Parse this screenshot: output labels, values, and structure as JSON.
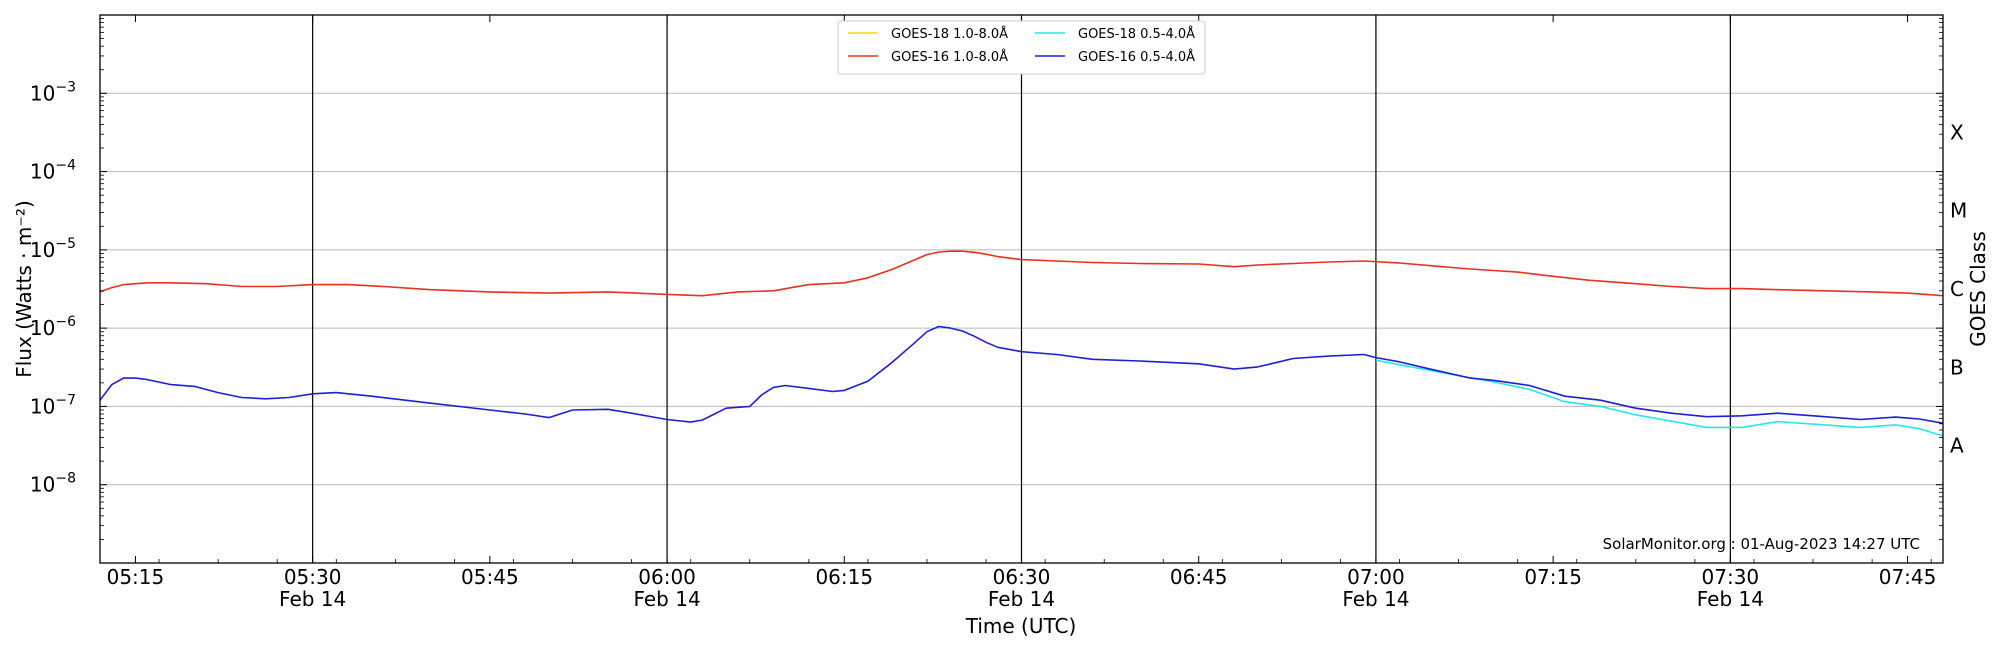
{
  "chart_data": {
    "type": "line",
    "title": "",
    "xlabel": "Time (UTC)",
    "ylabel": "Flux (Watts · m⁻²)",
    "y2label": "GOES Class",
    "y_scale": "log",
    "ylim": [
      1e-09,
      0.01
    ],
    "xlim": [
      "05:12",
      "07:48"
    ],
    "grid": "horizontal at decades",
    "legend_position": "top-center",
    "credit": "SolarMonitor.org : 01-Aug-2023 14:27 UTC",
    "x_ticks": [
      {
        "t": "05:15",
        "label": "05:15"
      },
      {
        "t": "05:30",
        "label": "05:30",
        "date": "Feb 14"
      },
      {
        "t": "05:45",
        "label": "05:45"
      },
      {
        "t": "06:00",
        "label": "06:00",
        "date": "Feb 14"
      },
      {
        "t": "06:15",
        "label": "06:15"
      },
      {
        "t": "06:30",
        "label": "06:30",
        "date": "Feb 14"
      },
      {
        "t": "06:45",
        "label": "06:45"
      },
      {
        "t": "07:00",
        "label": "07:00",
        "date": "Feb 14"
      },
      {
        "t": "07:15",
        "label": "07:15"
      },
      {
        "t": "07:30",
        "label": "07:30",
        "date": "Feb 14"
      },
      {
        "t": "07:45",
        "label": "07:45"
      }
    ],
    "y_ticks": [
      {
        "exp": -8,
        "base": "10",
        "sup": "−8"
      },
      {
        "exp": -7,
        "base": "10",
        "sup": "−7"
      },
      {
        "exp": -6,
        "base": "10",
        "sup": "−6"
      },
      {
        "exp": -5,
        "base": "10",
        "sup": "−5"
      },
      {
        "exp": -4,
        "base": "10",
        "sup": "−4"
      },
      {
        "exp": -3,
        "base": "10",
        "sup": "−3"
      }
    ],
    "goes_classes": [
      {
        "label": "A",
        "exp": -7.5
      },
      {
        "label": "B",
        "exp": -6.5
      },
      {
        "label": "C",
        "exp": -5.5
      },
      {
        "label": "M",
        "exp": -4.5
      },
      {
        "label": "X",
        "exp": -3.5
      }
    ],
    "vertical_lines": [
      "05:30",
      "06:00",
      "06:30",
      "07:00",
      "07:30"
    ],
    "series": [
      {
        "name": "GOES-18 1.0-8.0Å",
        "color": "#ffd700",
        "x": [],
        "y": []
      },
      {
        "name": "GOES-16 1.0-8.0Å",
        "color": "#e8321e",
        "x": [
          "05:12",
          "05:13",
          "05:14",
          "05:16",
          "05:18",
          "05:21",
          "05:24",
          "05:27",
          "05:30",
          "05:33",
          "05:36",
          "05:40",
          "05:45",
          "05:50",
          "05:55",
          "06:00",
          "06:03",
          "06:06",
          "06:09",
          "06:12",
          "06:15",
          "06:17",
          "06:19",
          "06:21",
          "06:22",
          "06:23",
          "06:24",
          "06:25",
          "06:26",
          "06:27",
          "06:28",
          "06:30",
          "06:33",
          "06:36",
          "06:40",
          "06:45",
          "06:48",
          "06:50",
          "06:53",
          "06:56",
          "06:59",
          "07:02",
          "07:05",
          "07:08",
          "07:12",
          "07:15",
          "07:18",
          "07:22",
          "07:25",
          "07:28",
          "07:31",
          "07:34",
          "07:38",
          "07:42",
          "07:45",
          "07:48"
        ],
        "y": [
          2.9e-06,
          3.3e-06,
          3.6e-06,
          3.8e-06,
          3.8e-06,
          3.7e-06,
          3.4e-06,
          3.4e-06,
          3.6e-06,
          3.6e-06,
          3.4e-06,
          3.1e-06,
          2.9e-06,
          2.8e-06,
          2.9e-06,
          2.7e-06,
          2.6e-06,
          2.9e-06,
          3e-06,
          3.6e-06,
          3.8e-06,
          4.4e-06,
          5.6e-06,
          7.5e-06,
          8.7e-06,
          9.4e-06,
          9.6e-06,
          9.6e-06,
          9.3e-06,
          8.8e-06,
          8.2e-06,
          7.5e-06,
          7.2e-06,
          6.9e-06,
          6.7e-06,
          6.6e-06,
          6.1e-06,
          6.4e-06,
          6.7e-06,
          7e-06,
          7.2e-06,
          6.8e-06,
          6.2e-06,
          5.7e-06,
          5.2e-06,
          4.6e-06,
          4.1e-06,
          3.7e-06,
          3.4e-06,
          3.2e-06,
          3.2e-06,
          3.1e-06,
          3e-06,
          2.9e-06,
          2.8e-06,
          2.6e-06
        ]
      },
      {
        "name": "GOES-18 0.5-4.0Å",
        "color": "#22e8e8",
        "x": [
          "07:00",
          "07:05",
          "07:10",
          "07:13",
          "07:16",
          "07:19",
          "07:22",
          "07:25",
          "07:28",
          "07:31",
          "07:34",
          "07:38",
          "07:41",
          "07:44",
          "07:46",
          "07:48"
        ],
        "y": [
          3.9e-07,
          2.8e-07,
          2.05e-07,
          1.65e-07,
          1.15e-07,
          1e-07,
          7.8e-08,
          6.5e-08,
          5.4e-08,
          5.4e-08,
          6.4e-08,
          5.8e-08,
          5.4e-08,
          5.8e-08,
          5.2e-08,
          4.2e-08
        ]
      },
      {
        "name": "GOES-16 0.5-4.0Å",
        "color": "#1f1fd6",
        "x": [
          "05:12",
          "05:13",
          "05:14",
          "05:15",
          "05:16",
          "05:18",
          "05:20",
          "05:22",
          "05:24",
          "05:26",
          "05:28",
          "05:30",
          "05:32",
          "05:35",
          "05:40",
          "05:45",
          "05:48",
          "05:50",
          "05:52",
          "05:55",
          "05:57",
          "06:00",
          "06:02",
          "06:03",
          "06:05",
          "06:07",
          "06:08",
          "06:09",
          "06:10",
          "06:12",
          "06:14",
          "06:15",
          "06:17",
          "06:19",
          "06:21",
          "06:22",
          "06:23",
          "06:24",
          "06:25",
          "06:26",
          "06:27",
          "06:28",
          "06:30",
          "06:33",
          "06:36",
          "06:40",
          "06:45",
          "06:48",
          "06:50",
          "06:53",
          "06:56",
          "06:59",
          "07:00",
          "07:02",
          "07:05",
          "07:08",
          "07:10",
          "07:13",
          "07:16",
          "07:19",
          "07:22",
          "07:25",
          "07:28",
          "07:31",
          "07:34",
          "07:38",
          "07:41",
          "07:44",
          "07:46",
          "07:48"
        ],
        "y": [
          1.2e-07,
          1.9e-07,
          2.3e-07,
          2.3e-07,
          2.2e-07,
          1.9e-07,
          1.8e-07,
          1.5e-07,
          1.3e-07,
          1.25e-07,
          1.3e-07,
          1.45e-07,
          1.5e-07,
          1.35e-07,
          1.1e-07,
          9e-08,
          8e-08,
          7.2e-08,
          9e-08,
          9.2e-08,
          8.2e-08,
          6.8e-08,
          6.3e-08,
          6.7e-08,
          9.5e-08,
          1e-07,
          1.4e-07,
          1.75e-07,
          1.85e-07,
          1.7e-07,
          1.55e-07,
          1.6e-07,
          2.1e-07,
          3.6e-07,
          6.6e-07,
          9e-07,
          1.05e-06,
          1e-06,
          9.2e-07,
          7.9e-07,
          6.6e-07,
          5.7e-07,
          5e-07,
          4.6e-07,
          4e-07,
          3.8e-07,
          3.5e-07,
          3e-07,
          3.2e-07,
          4.1e-07,
          4.4e-07,
          4.6e-07,
          4.2e-07,
          3.7e-07,
          2.9e-07,
          2.3e-07,
          2.15e-07,
          1.85e-07,
          1.35e-07,
          1.2e-07,
          9.5e-08,
          8.2e-08,
          7.4e-08,
          7.6e-08,
          8.2e-08,
          7.4e-08,
          6.8e-08,
          7.3e-08,
          6.9e-08,
          6.1e-08
        ]
      }
    ]
  }
}
